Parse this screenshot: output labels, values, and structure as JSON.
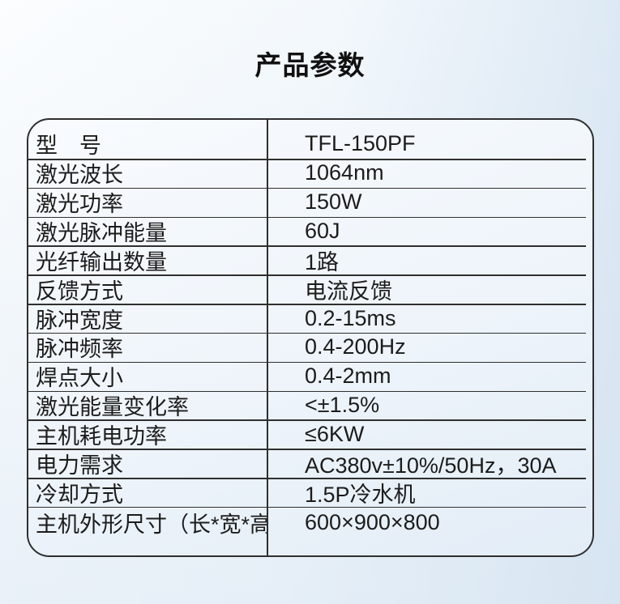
{
  "page": {
    "title": "产品参数"
  },
  "colors": {
    "border": "#2f2f2f",
    "text": "#1c1c1c",
    "background_top_left": "#fbfdfe",
    "background_bottom_right": "#d8e5f1",
    "table_fill_top": "#f8fbfe",
    "table_fill_bottom": "#e3edf7"
  },
  "table": {
    "rows": [
      {
        "label": "型　号",
        "value": "TFL-150PF"
      },
      {
        "label": "激光波长",
        "value": "1064nm"
      },
      {
        "label": "激光功率",
        "value": "150W"
      },
      {
        "label": "激光脉冲能量",
        "value": "60J"
      },
      {
        "label": "光纤输出数量",
        "value": "1路"
      },
      {
        "label": "反馈方式",
        "value": "电流反馈"
      },
      {
        "label": "脉冲宽度",
        "value": "0.2-15ms"
      },
      {
        "label": "脉冲频率",
        "value": "0.4-200Hz"
      },
      {
        "label": "焊点大小",
        "value": "0.4-2mm"
      },
      {
        "label": "激光能量变化率",
        "value": "<±1.5%"
      },
      {
        "label": "主机耗电功率",
        "value": "≤6KW"
      },
      {
        "label": "电力需求",
        "value": "AC380v±10%/50Hz，30A"
      },
      {
        "label": "冷却方式",
        "value": "1.5P冷水机"
      },
      {
        "label": "主机外形尺寸（长*宽*高）",
        "value": "600×900×800"
      }
    ]
  }
}
